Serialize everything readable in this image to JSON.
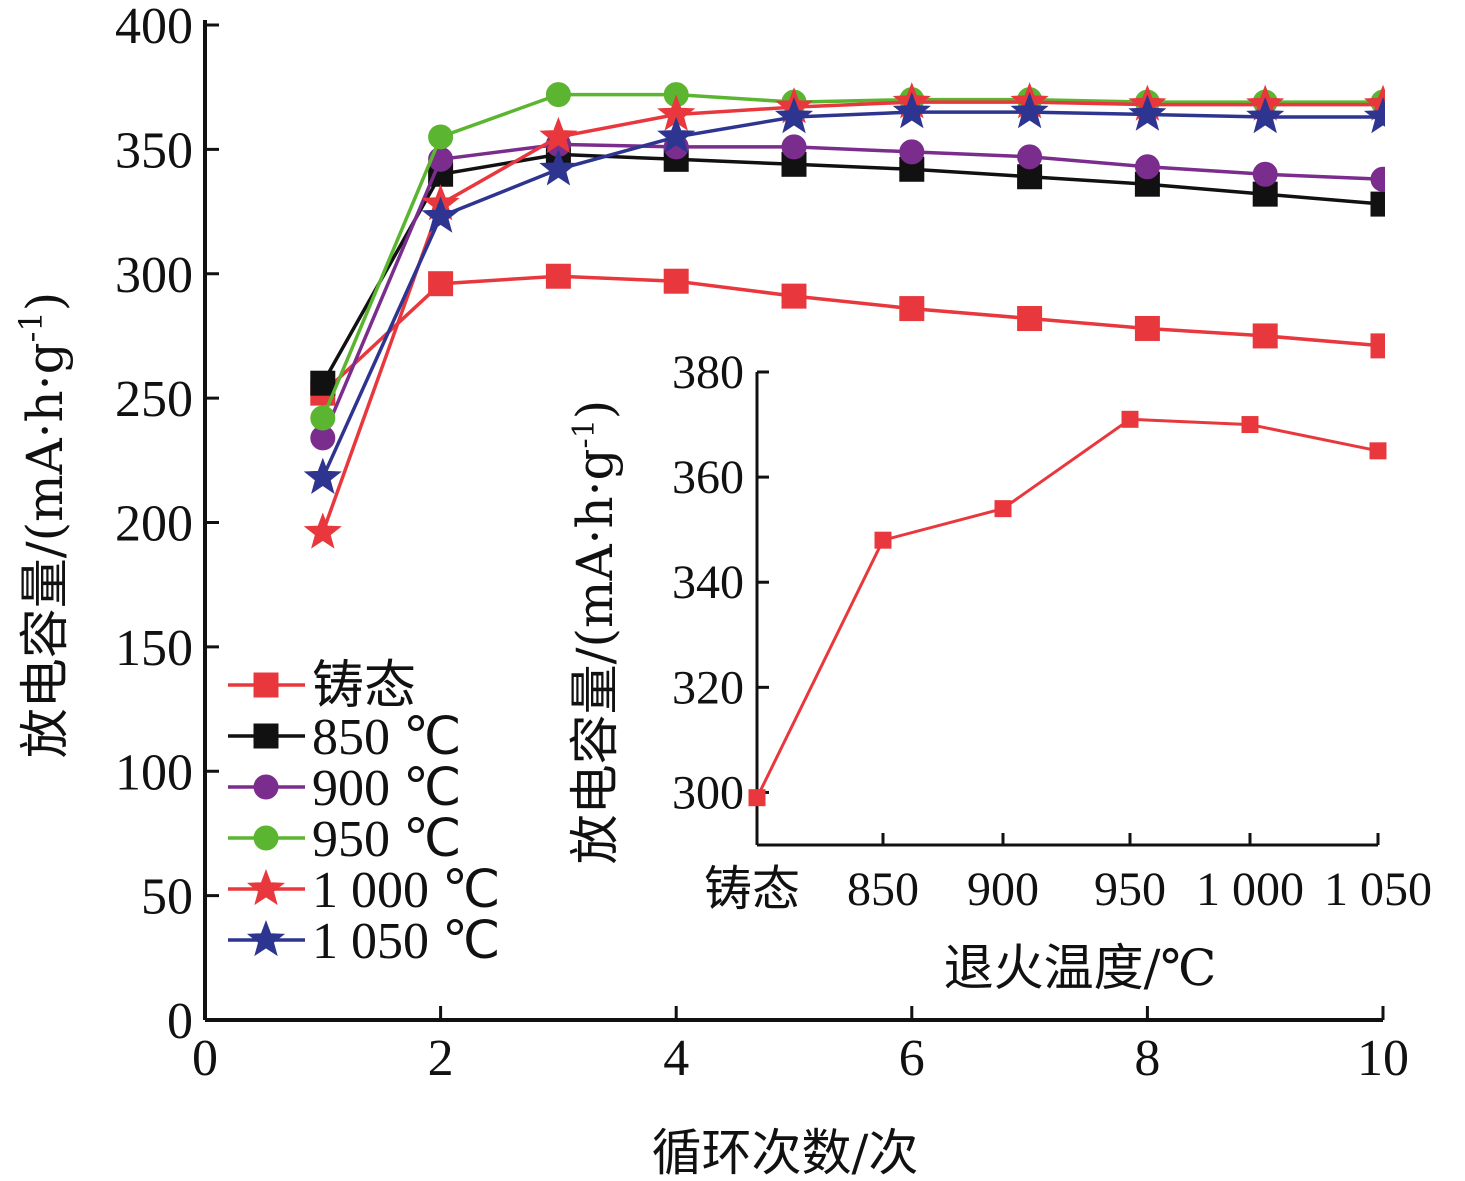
{
  "chart_data": [
    {
      "type": "line",
      "xlabel": "循环次数/次",
      "ylabel": "放电容量/(mA·h·g",
      "ylabel_sup": "-1",
      "ylabel_close": ")",
      "xlim": [
        0,
        10
      ],
      "ylim": [
        0,
        400
      ],
      "x_ticks": [
        0,
        2,
        4,
        6,
        8,
        10
      ],
      "y_ticks": [
        0,
        50,
        100,
        150,
        200,
        250,
        300,
        350,
        400
      ],
      "x": [
        1,
        2,
        3,
        4,
        5,
        6,
        7,
        8,
        9,
        10
      ],
      "legend_position": "bottom-left",
      "series": [
        {
          "name": "铸态",
          "color": "#e8383d",
          "marker": "square",
          "values": [
            252,
            296,
            299,
            297,
            291,
            286,
            282,
            278,
            275,
            271
          ]
        },
        {
          "name": "850 ℃",
          "color": "#111111",
          "marker": "square",
          "values": [
            256,
            340,
            348,
            346,
            344,
            342,
            339,
            336,
            332,
            328
          ]
        },
        {
          "name": "900 ℃",
          "color": "#7b2d8e",
          "marker": "circle",
          "values": [
            234,
            346,
            352,
            351,
            351,
            349,
            347,
            343,
            340,
            338
          ]
        },
        {
          "name": "950 ℃",
          "color": "#5cb531",
          "marker": "circle",
          "values": [
            242,
            355,
            372,
            372,
            369,
            370,
            370,
            369,
            369,
            369
          ]
        },
        {
          "name": "1 000 ℃",
          "color": "#e8383d",
          "marker": "star",
          "values": [
            196,
            328,
            355,
            364,
            367,
            369,
            369,
            368,
            368,
            368
          ]
        },
        {
          "name": "1 050 ℃",
          "color": "#2e3590",
          "marker": "star",
          "values": [
            218,
            323,
            342,
            355,
            363,
            365,
            365,
            364,
            363,
            363
          ]
        }
      ]
    },
    {
      "type": "line",
      "xlabel": "退火温度/℃",
      "ylabel": "放电容量/(mA·h·g",
      "ylabel_sup": "-1",
      "ylabel_close": ")",
      "ylim": [
        290,
        380
      ],
      "y_ticks": [
        300,
        320,
        340,
        360,
        380
      ],
      "categories": [
        "铸态",
        "850",
        "900",
        "950",
        "1 000",
        "1 050"
      ],
      "series": [
        {
          "color": "#e8383d",
          "marker": "square",
          "values": [
            299,
            348,
            354,
            371,
            370,
            365
          ]
        }
      ]
    }
  ]
}
